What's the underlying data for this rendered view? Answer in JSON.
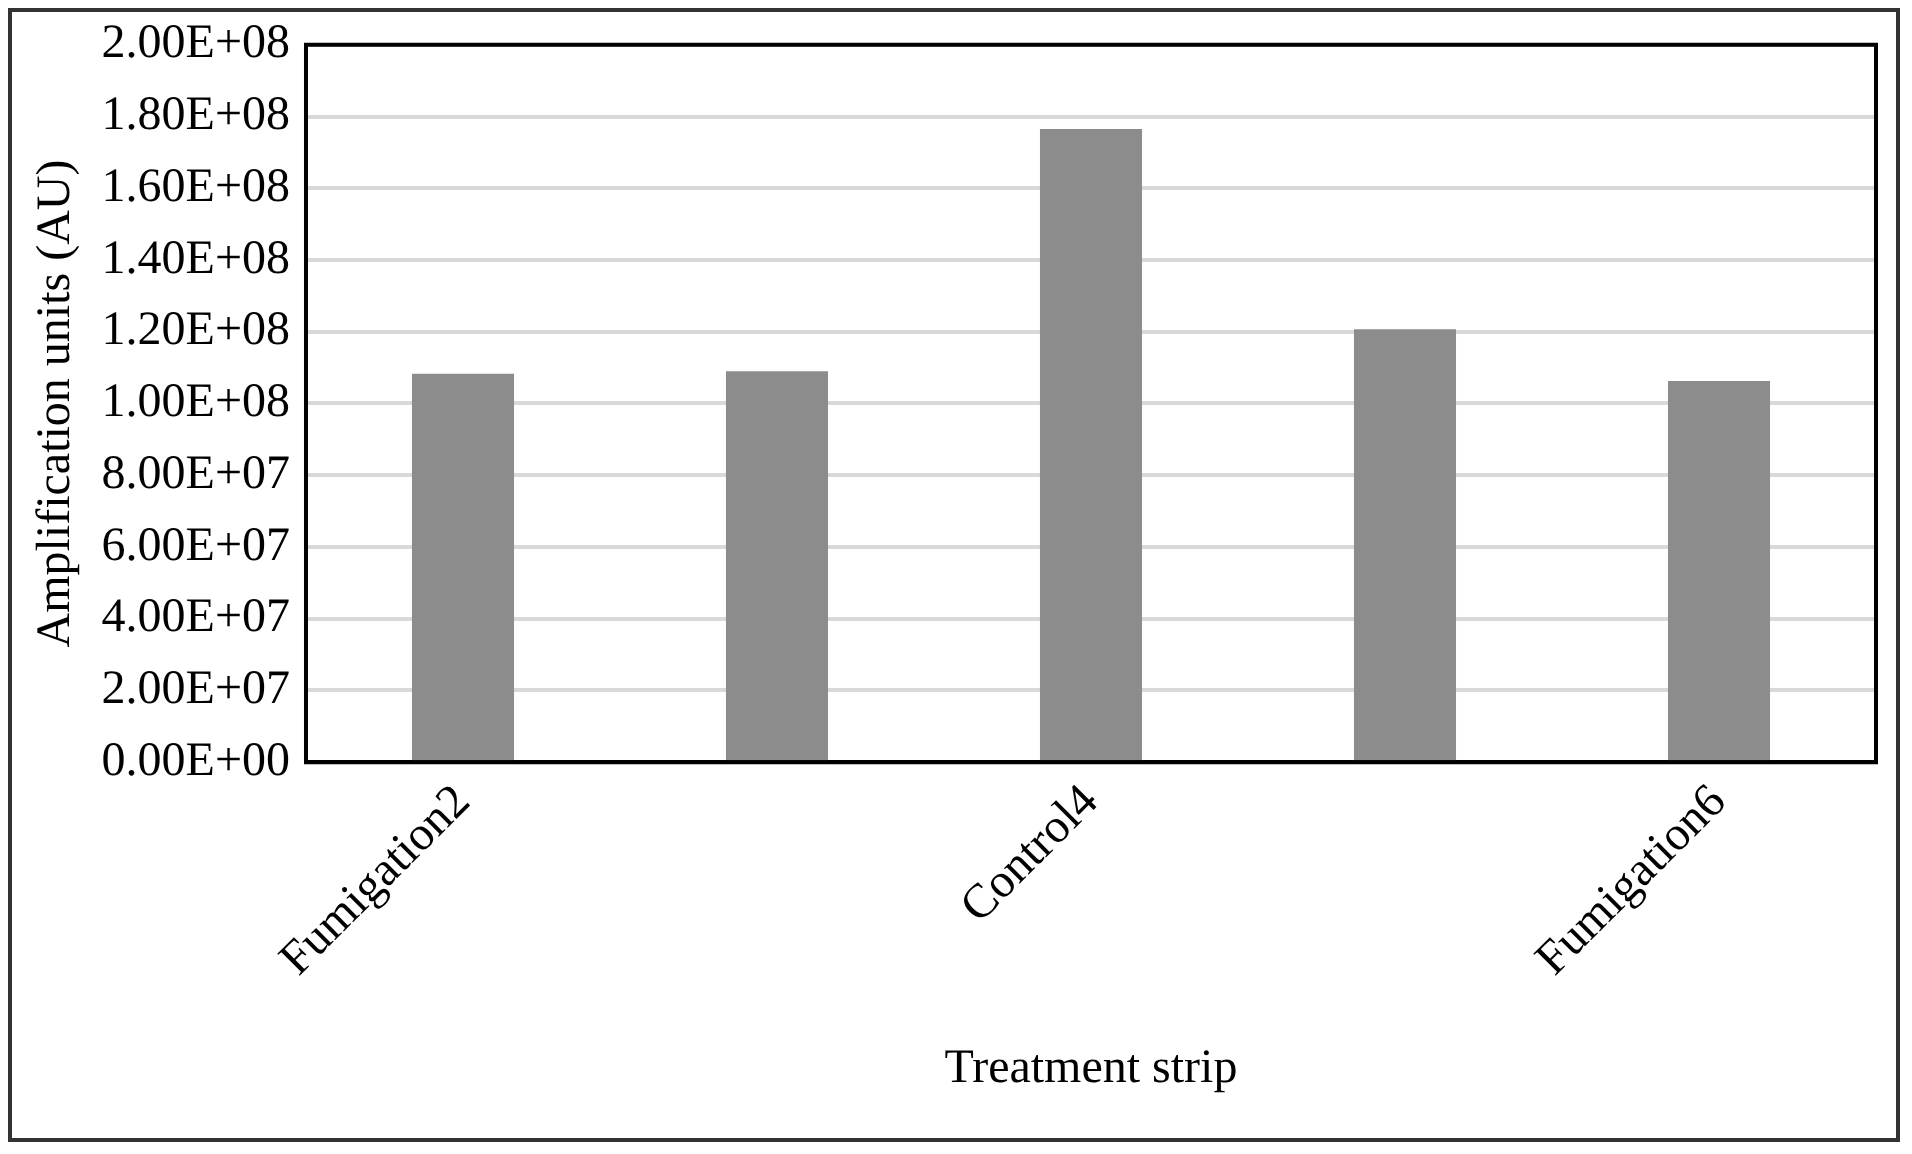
{
  "chart_data": {
    "type": "bar",
    "categories": [
      "Fumigation2",
      null,
      "Control4",
      null,
      "Fumigation6"
    ],
    "values": [
      108300000,
      109000000,
      176500000,
      120700000,
      106300000
    ],
    "color": "#8c8c8c",
    "xlabel": "Treatment strip",
    "ylabel": "Amplification units (AU)",
    "ylim": [
      0,
      200000000
    ],
    "yticks": [
      {
        "value": 0,
        "label": "0.00E+00"
      },
      {
        "value": 20000000,
        "label": "2.00E+07"
      },
      {
        "value": 40000000,
        "label": "4.00E+07"
      },
      {
        "value": 60000000,
        "label": "6.00E+07"
      },
      {
        "value": 80000000,
        "label": "8.00E+07"
      },
      {
        "value": 100000000,
        "label": "1.00E+08"
      },
      {
        "value": 120000000,
        "label": "1.20E+08"
      },
      {
        "value": 140000000,
        "label": "1.40E+08"
      },
      {
        "value": 160000000,
        "label": "1.60E+08"
      },
      {
        "value": 180000000,
        "label": "1.80E+08"
      },
      {
        "value": 200000000,
        "label": "2.00E+08"
      }
    ],
    "grid": "y"
  }
}
